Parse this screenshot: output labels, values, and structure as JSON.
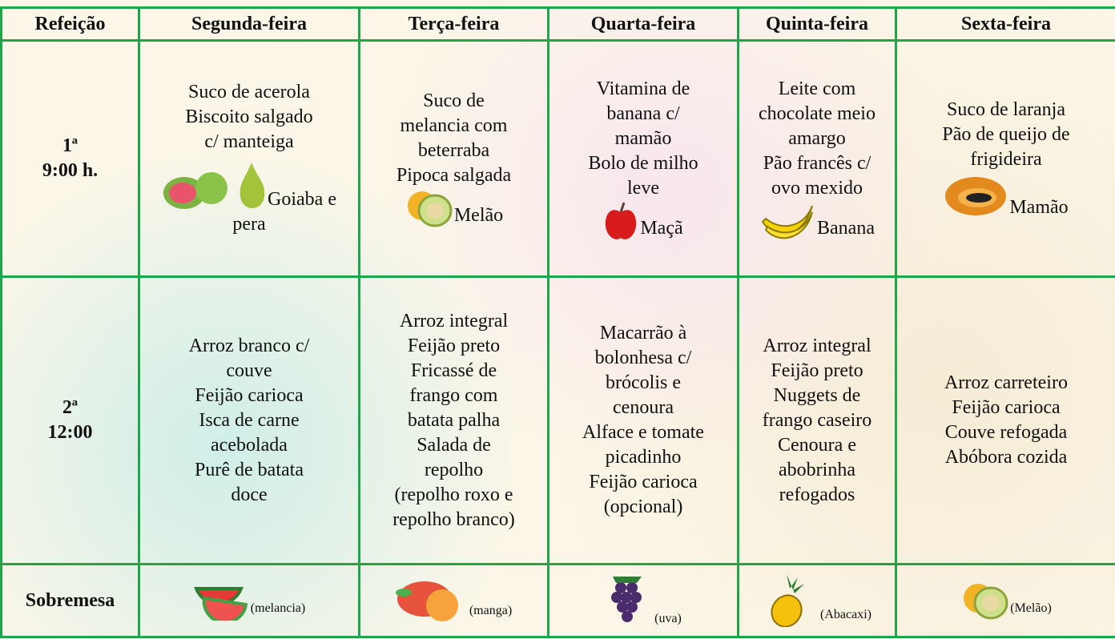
{
  "table": {
    "header": [
      "Refeição",
      "Segunda-feira",
      "Terça-feira",
      "Quarta-feira",
      "Quinta-feira",
      "Sexta-feira"
    ],
    "rows": [
      {
        "label": [
          "1ª",
          "9:00 h."
        ],
        "cells": [
          [
            "Suco de acerola",
            "Biscoito salgado",
            "c/ manteiga",
            "Goiaba e pera"
          ],
          [
            "Suco de",
            "melancia com",
            "beterraba",
            "Pipoca salgada",
            "Melão"
          ],
          [
            "Vitamina de",
            "banana c/",
            "mamão",
            "Bolo de milho",
            "leve",
            "Maçã"
          ],
          [
            "Leite com",
            "chocolate meio",
            "amargo",
            "Pão francês c/",
            "ovo mexido",
            "Banana"
          ],
          [
            "Suco de laranja",
            "Pão de queijo de",
            "frigideira",
            "Mamão"
          ]
        ]
      },
      {
        "label": [
          "2ª",
          "12:00"
        ],
        "cells": [
          [
            "Arroz branco c/",
            "couve",
            "Feijão carioca",
            "Isca de carne",
            "acebolada",
            "Purê de batata",
            "doce"
          ],
          [
            "Arroz integral",
            "Feijão preto",
            "Fricassé de",
            "frango com",
            "batata palha",
            "Salada de",
            "repolho",
            "(repolho roxo e",
            "repolho branco)"
          ],
          [
            "Macarrão à",
            "bolonhesa c/",
            "brócolis e",
            "cenoura",
            "Alface e tomate",
            "picadinho",
            "Feijão carioca",
            "(opcional)"
          ],
          [
            "Arroz integral",
            "Feijão preto",
            "Nuggets de",
            "frango caseiro",
            "Cenoura e",
            "abobrinha",
            "refogados"
          ],
          [
            "Arroz carreteiro",
            "Feijão carioca",
            "Couve refogada",
            "Abóbora cozida"
          ]
        ]
      },
      {
        "label": [
          "Sobremesa"
        ],
        "cells": [
          [
            "(melancia)"
          ],
          [
            "(manga)"
          ],
          [
            "(uva)"
          ],
          [
            "(Abacaxi)"
          ],
          [
            "(Melão)"
          ]
        ]
      }
    ]
  }
}
